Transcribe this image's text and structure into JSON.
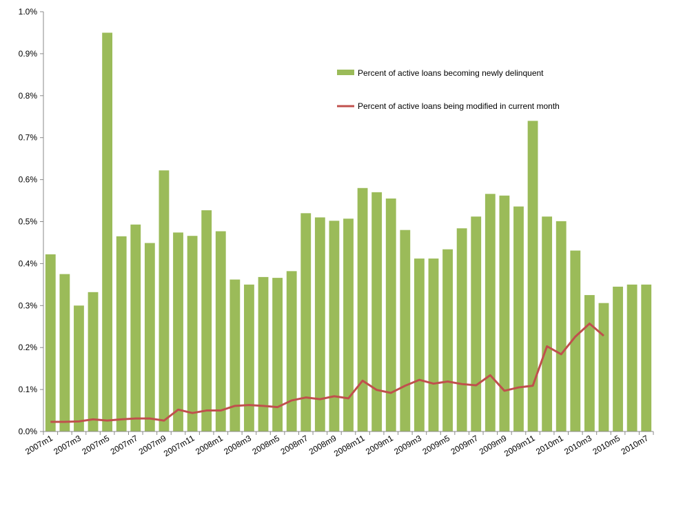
{
  "chart_data": {
    "type": "bar",
    "title": "",
    "xlabel": "",
    "ylabel": "",
    "ylim": [
      0,
      0.01
    ],
    "y_tick_labels": [
      "0.0%",
      "0.1%",
      "0.2%",
      "0.3%",
      "0.4%",
      "0.5%",
      "0.6%",
      "0.7%",
      "0.8%",
      "0.9%",
      "1.0%"
    ],
    "grid": false,
    "legend_position": "top-right",
    "categories": [
      "2007m1",
      "2007m2",
      "2007m3",
      "2007m4",
      "2007m5",
      "2007m6",
      "2007m7",
      "2007m8",
      "2007m9",
      "2007m10",
      "2007m11",
      "2007m12",
      "2008m1",
      "2008m2",
      "2008m3",
      "2008m4",
      "2008m5",
      "2008m6",
      "2008m7",
      "2008m8",
      "2008m9",
      "2008m10",
      "2008m11",
      "2008m12",
      "2009m1",
      "2009m2",
      "2009m3",
      "2009m4",
      "2009m5",
      "2009m6",
      "2009m7",
      "2009m8",
      "2009m9",
      "2009m10",
      "2009m11",
      "2009m12",
      "2010m1",
      "2010m2",
      "2010m3",
      "2010m4",
      "2010m5",
      "2010m6",
      "2010m7"
    ],
    "x_tick_labels": [
      "2007m1",
      "2007m3",
      "2007m5",
      "2007m7",
      "2007m9",
      "2007m11",
      "2008m1",
      "2008m3",
      "2008m5",
      "2008m7",
      "2008m9",
      "2008m11",
      "2009m1",
      "2009m3",
      "2009m5",
      "2009m7",
      "2009m9",
      "2009m11",
      "2010m1",
      "2010m3",
      "2010m5",
      "2010m7"
    ],
    "series": [
      {
        "name": "Percent of active loans becoming newly delinquent",
        "type": "bar",
        "color": "#9bbb59",
        "values": [
          0.00422,
          0.00375,
          0.003,
          0.00332,
          0.0095,
          0.00465,
          0.00493,
          0.00449,
          0.00622,
          0.00474,
          0.00466,
          0.00527,
          0.00477,
          0.00362,
          0.0035,
          0.00368,
          0.00366,
          0.00382,
          0.0052,
          0.0051,
          0.00502,
          0.00507,
          0.0058,
          0.0057,
          0.00555,
          0.0048,
          0.00412,
          0.00412,
          0.00434,
          0.00484,
          0.00512,
          0.00566,
          0.00562,
          0.00536,
          0.0074,
          0.00512,
          0.00501,
          0.00431,
          0.00325,
          0.00306,
          0.00345,
          0.0035,
          0.0035
        ]
      },
      {
        "name": "Percent of active loans being modified in current month",
        "type": "line",
        "color": "#c0504d",
        "values": [
          0.00023,
          0.00023,
          0.00024,
          0.00029,
          0.00026,
          0.00029,
          0.00031,
          0.00031,
          0.00026,
          0.00052,
          0.00044,
          0.0005,
          0.0005,
          0.00061,
          0.00063,
          0.00061,
          0.00058,
          0.00074,
          0.00081,
          0.00077,
          0.00084,
          0.00079,
          0.00121,
          0.00099,
          0.00092,
          0.00109,
          0.00123,
          0.00114,
          0.00119,
          0.00113,
          0.0011,
          0.00134,
          0.00097,
          0.00105,
          0.00109,
          0.00203,
          0.00184,
          0.00226,
          0.00257,
          0.00228,
          null,
          null,
          null
        ]
      }
    ]
  }
}
